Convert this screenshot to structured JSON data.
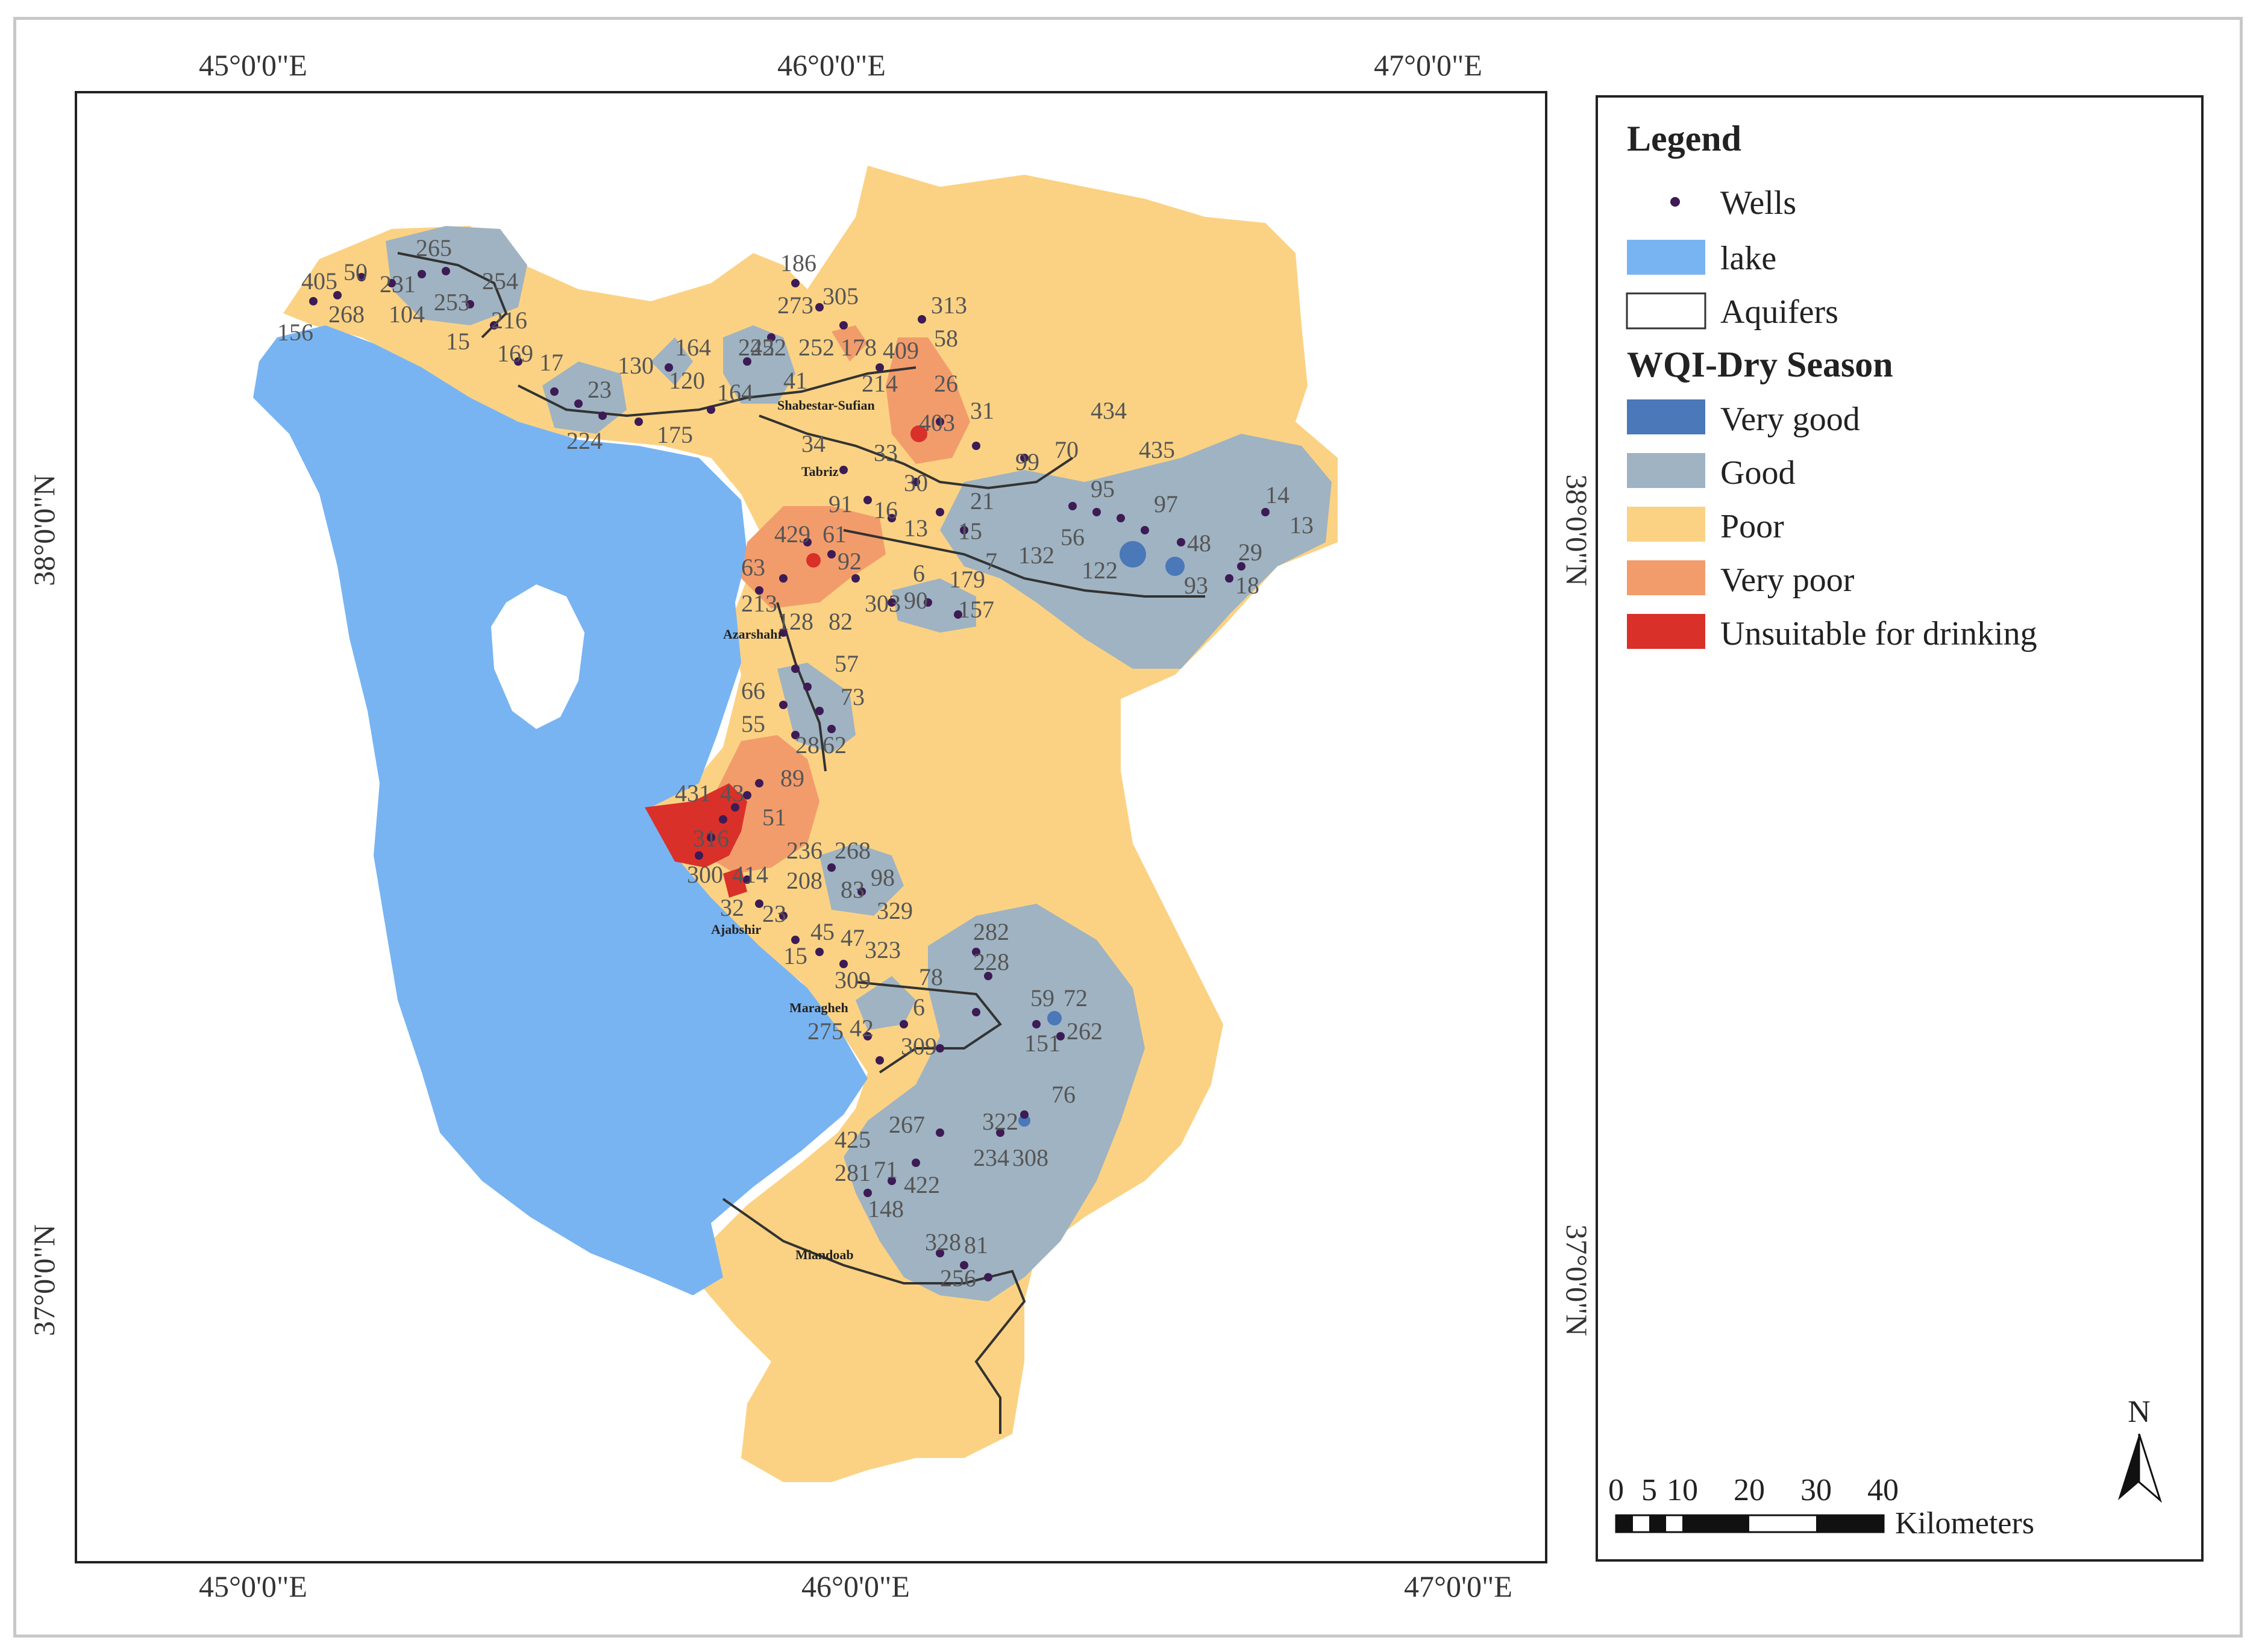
{
  "map": {
    "coords": {
      "top": [
        "45°0'0\"E",
        "46°0'0\"E",
        "47°0'0\"E"
      ],
      "bottom": [
        "45°0'0\"E",
        "46°0'0\"E",
        "47°0'0\"E"
      ],
      "left": [
        "38°0'0\"N",
        "37°0'0\"N"
      ],
      "right": [
        "38°0'0\"N",
        "37°0'0\"N"
      ]
    },
    "towns": [
      "Shabestar-Sufian",
      "Tabriz",
      "Azarshahr",
      "Ajabshir",
      "Maragheh",
      "Miandoab"
    ],
    "well_labels": [
      "265",
      "405",
      "50",
      "231",
      "254",
      "268",
      "104",
      "253",
      "216",
      "156",
      "15",
      "169",
      "17",
      "186",
      "305",
      "273",
      "313",
      "252",
      "252",
      "178",
      "409",
      "58",
      "164",
      "130",
      "242",
      "41",
      "214",
      "26",
      "120",
      "164",
      "31",
      "403",
      "224",
      "23",
      "175",
      "434",
      "34",
      "70",
      "435",
      "14",
      "33",
      "99",
      "95",
      "97",
      "13",
      "91",
      "21",
      "30",
      "16",
      "13",
      "429",
      "61",
      "15",
      "56",
      "48",
      "63",
      "92",
      "132",
      "122",
      "29",
      "18",
      "213",
      "6",
      "179",
      "93",
      "303",
      "90",
      "157",
      "7",
      "128",
      "82",
      "57",
      "66",
      "73",
      "55",
      "28",
      "62",
      "89",
      "431",
      "43",
      "51",
      "316",
      "236",
      "268",
      "300",
      "414",
      "208",
      "83",
      "98",
      "329",
      "32",
      "23",
      "45",
      "47",
      "282",
      "228",
      "15",
      "323",
      "78",
      "309",
      "59",
      "72",
      "151",
      "262",
      "275",
      "42",
      "6",
      "309",
      "76",
      "267",
      "322",
      "425",
      "234",
      "308",
      "281",
      "71",
      "422",
      "148",
      "328",
      "81",
      "256"
    ]
  },
  "legend": {
    "title": "Legend",
    "wells": "Wells",
    "lake": "lake",
    "aquifers": "Aquifers",
    "wqi_title": "WQI-Dry Season",
    "classes": [
      {
        "label": "Very good",
        "color": "#4a78b8"
      },
      {
        "label": "Good",
        "color": "#9fb3c2"
      },
      {
        "label": "Poor",
        "color": "#fbd283"
      },
      {
        "label": "Very poor",
        "color": "#f29c6c"
      },
      {
        "label": "Unsuitable for drinking",
        "color": "#d9302a"
      }
    ]
  },
  "scale_bar": {
    "ticks": [
      "0",
      "5",
      "10",
      "20",
      "30",
      "40"
    ],
    "unit": "Kilometers"
  },
  "north_arrow": {
    "label": "N"
  },
  "colors": {
    "lake": "#78b4f2",
    "poor": "#fbd283",
    "good": "#9fb3c2",
    "very_good": "#4a78b8",
    "very_poor": "#f29c6c",
    "unsuitable": "#d9302a",
    "well_dot": "#3d1b55"
  }
}
